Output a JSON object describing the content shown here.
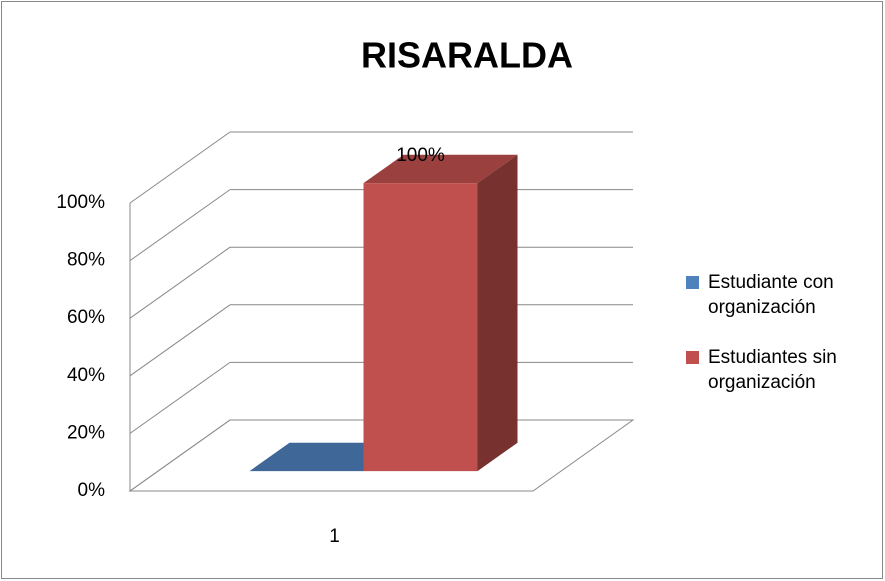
{
  "chart_data": {
    "type": "bar3d",
    "title": "RISARALDA",
    "categories": [
      "1"
    ],
    "series": [
      {
        "name": "Estudiante con organización",
        "color": "#4f81bd",
        "values": [
          0
        ]
      },
      {
        "name": "Estudiantes sin organización",
        "color": "#c0504d",
        "values": [
          100
        ],
        "value_labels": [
          "100%"
        ]
      }
    ],
    "ylim": [
      0,
      100
    ],
    "yticks": [
      {
        "value": 0,
        "label": "0%"
      },
      {
        "value": 20,
        "label": "20%"
      },
      {
        "value": 40,
        "label": "40%"
      },
      {
        "value": 60,
        "label": "60%"
      },
      {
        "value": 80,
        "label": "80%"
      },
      {
        "value": 100,
        "label": "100%"
      }
    ],
    "grid": true,
    "legend": "right"
  }
}
